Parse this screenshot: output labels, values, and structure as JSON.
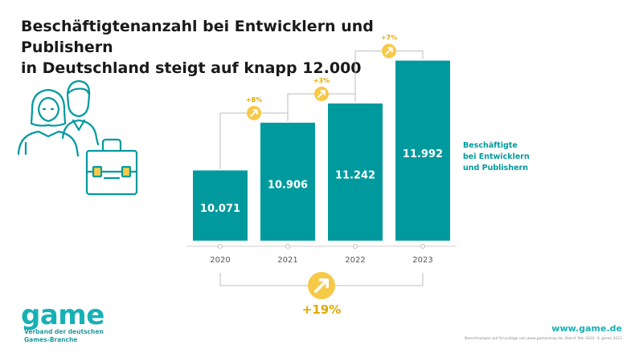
{
  "title_line1": "Beschäftigtenanzahl bei Entwicklern und Publishern",
  "title_line2": "in Deutschland steigt auf knapp 12.000",
  "colors": {
    "bar": "#009a9e",
    "accent": "#f7c948",
    "text": "#1a1a1a",
    "teal_text": "#009a9e"
  },
  "icons": {
    "people": "people-icon",
    "briefcase": "briefcase-icon",
    "growth_arrow": "arrow-up-right-icon"
  },
  "chart_data": {
    "type": "bar",
    "categories": [
      "2020",
      "2021",
      "2022",
      "2023"
    ],
    "series": [
      {
        "name": "Beschäftigte bei Entwicklern und Publishern",
        "values": [
          10071,
          10906,
          11242,
          11992
        ]
      }
    ],
    "value_labels": [
      "10.071",
      "10.906",
      "11.242",
      "11.992"
    ],
    "series_label_lines": [
      "Beschäftigte",
      "bei Entwicklern",
      "und Publishern"
    ],
    "changes": [
      "+8%",
      "+3%",
      "+7%"
    ],
    "total_change": "+19%"
  },
  "footer": {
    "logo": "game",
    "tagline_line1": "Verband der deutschen",
    "tagline_line2": "Games-Branche",
    "website": "www.game.de",
    "source": "Berechnungen auf Grundlage von www.gamesmap.de; Stand: Mai 2023. © game 2023"
  }
}
